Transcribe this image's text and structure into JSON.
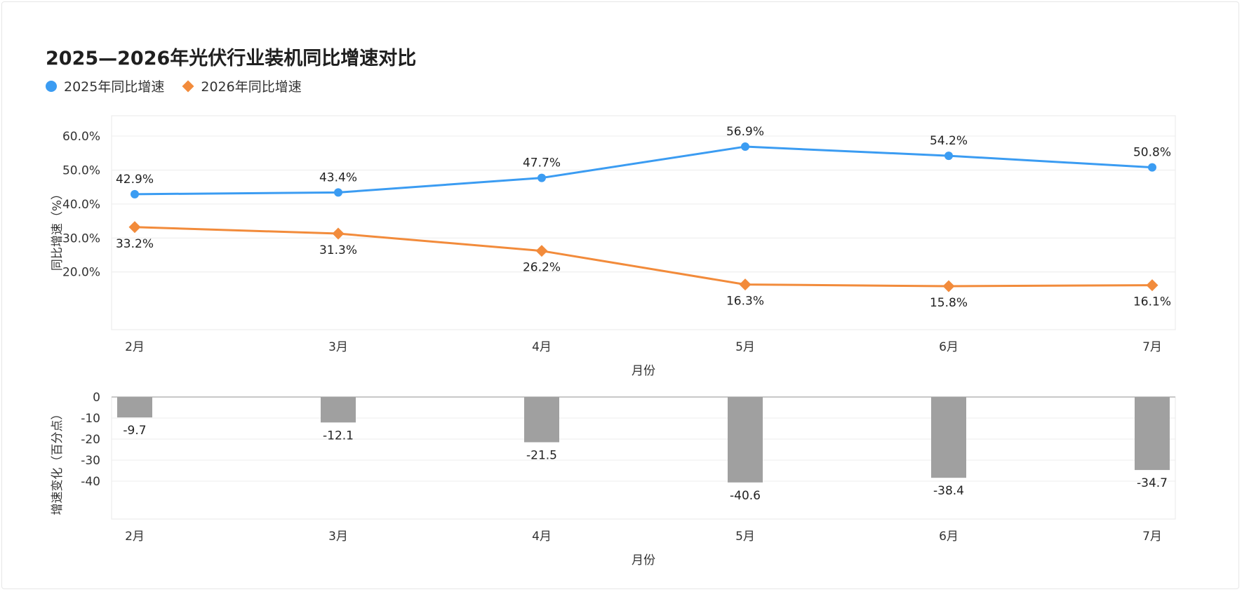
{
  "chart": {
    "title": "2025—2026年光伏行业装机同比增速对比",
    "legend": [
      {
        "label": "2025年同比增速",
        "color": "#3b9cf2",
        "marker": "circle"
      },
      {
        "label": "2026年同比增速",
        "color": "#f28b3b",
        "marker": "diamond"
      }
    ]
  },
  "chart_data": [
    {
      "type": "line",
      "title": "2025—2026年光伏行业装机同比增速对比",
      "categories": [
        "2月",
        "3月",
        "4月",
        "5月",
        "6月",
        "7月"
      ],
      "series": [
        {
          "name": "2025年同比增速",
          "values": [
            42.9,
            43.4,
            47.7,
            56.9,
            54.2,
            50.8
          ],
          "color": "#3b9cf2",
          "marker": "circle"
        },
        {
          "name": "2026年同比增速",
          "values": [
            33.2,
            31.3,
            26.2,
            16.3,
            15.8,
            16.1
          ],
          "color": "#f28b3b",
          "marker": "diamond"
        }
      ],
      "xlabel": "月份",
      "ylabel": "同比增速（%）",
      "yticks": [
        "60.0%",
        "50.0%",
        "40.0%",
        "30.0%",
        "20.0%"
      ],
      "ylim": [
        3,
        66
      ],
      "grid": true,
      "legend": "top-left"
    },
    {
      "type": "bar",
      "categories": [
        "2月",
        "3月",
        "4月",
        "5月",
        "6月",
        "7月"
      ],
      "values": [
        -9.7,
        -12.1,
        -21.5,
        -40.6,
        -38.4,
        -34.7
      ],
      "color": "#a0a0a0",
      "xlabel": "月份",
      "ylabel": "增速变化（百分点）",
      "yticks": [
        "0",
        "-10",
        "-20",
        "-30",
        "-40"
      ],
      "ylim": [
        -58,
        0
      ],
      "grid": true
    }
  ]
}
